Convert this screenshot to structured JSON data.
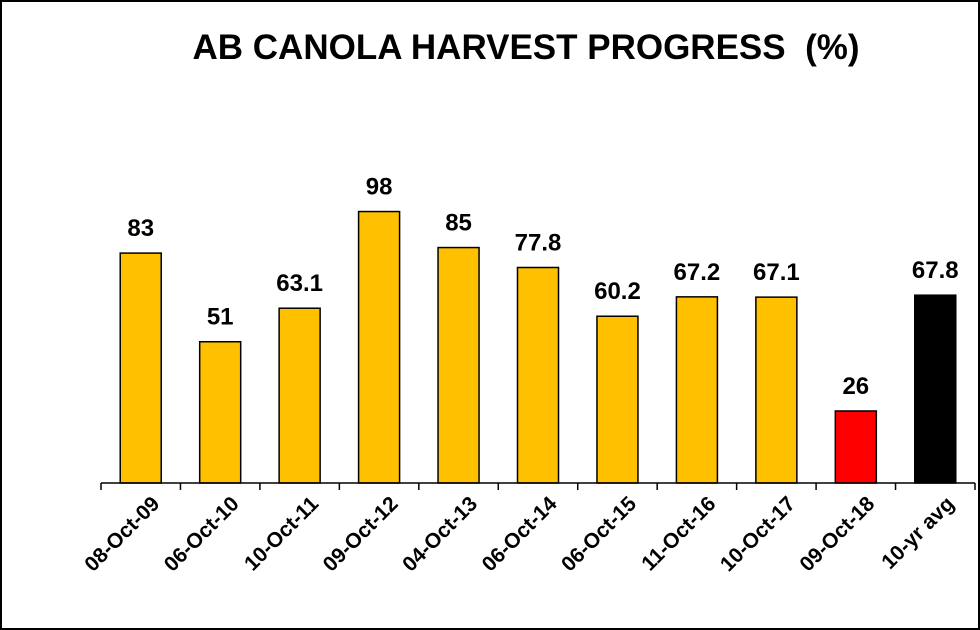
{
  "chart_data": {
    "type": "bar",
    "title": "AB CANOLA HARVEST PROGRESS  (%)",
    "categories": [
      "08-Oct-09",
      "06-Oct-10",
      "10-Oct-11",
      "09-Oct-12",
      "04-Oct-13",
      "06-Oct-14",
      "06-Oct-15",
      "11-Oct-16",
      "10-Oct-17",
      "09-Oct-18",
      "10-yr avg"
    ],
    "values": [
      83,
      51,
      63.1,
      98,
      85,
      77.8,
      60.2,
      67.2,
      67.1,
      26,
      67.8
    ],
    "value_labels": [
      "83",
      "51",
      "63.1",
      "98",
      "85",
      "77.8",
      "60.2",
      "67.2",
      "67.1",
      "26",
      "67.8"
    ],
    "bar_colors": [
      "#FFC000",
      "#FFC000",
      "#FFC000",
      "#FFC000",
      "#FFC000",
      "#FFC000",
      "#FFC000",
      "#FFC000",
      "#FFC000",
      "#FF0000",
      "#000000"
    ],
    "xlabel": "",
    "ylabel": "",
    "ylim": [
      0,
      100
    ],
    "grid": false,
    "legend": false,
    "y_axis_visible": false
  }
}
